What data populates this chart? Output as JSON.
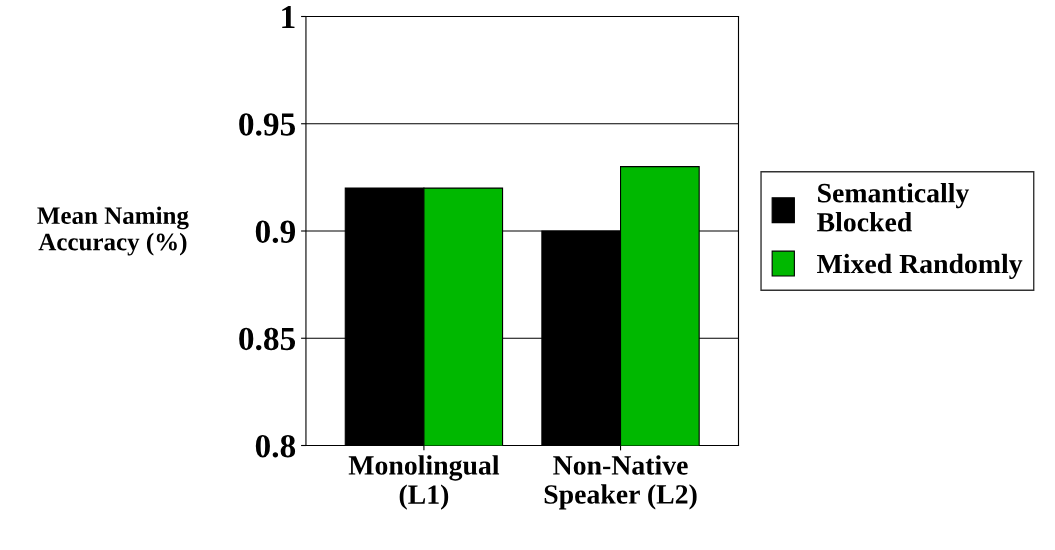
{
  "chart_data": {
    "type": "bar",
    "ylabel": "Mean Naming\nAccuracy (%)",
    "categories": [
      "Monolingual\n(L1)",
      "Non-Native\nSpeaker (L2)"
    ],
    "series": [
      {
        "name": "Semantically\nBlocked",
        "color": "#000000",
        "values": [
          0.92,
          0.9
        ]
      },
      {
        "name": "Mixed Randomly",
        "color": "#00b800",
        "values": [
          0.92,
          0.93
        ]
      }
    ],
    "ylim": [
      0.8,
      1
    ],
    "yticks": [
      0.8,
      0.85,
      0.9,
      0.95,
      1
    ],
    "grid": "y",
    "legend": "right"
  }
}
